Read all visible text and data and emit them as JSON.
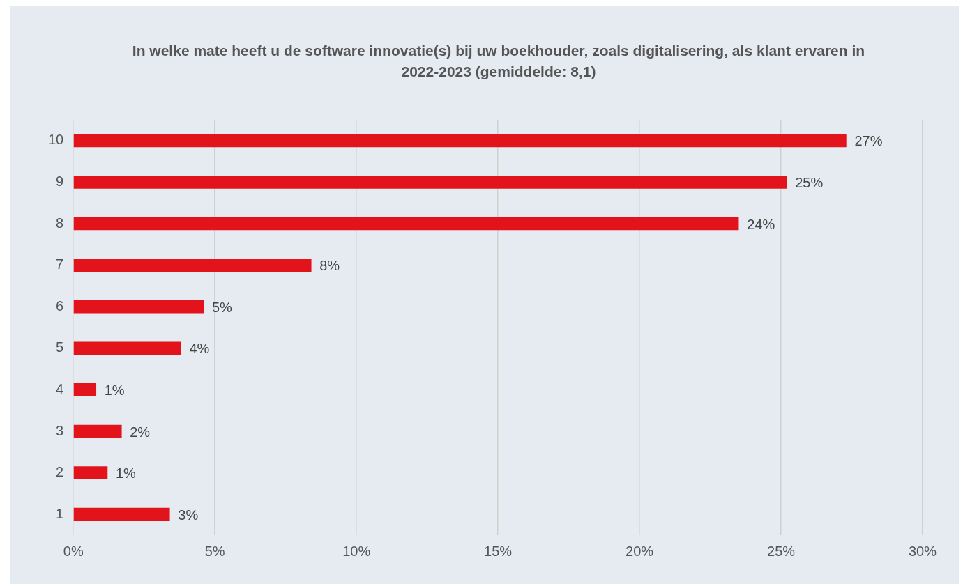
{
  "chart_data": {
    "type": "bar",
    "orientation": "horizontal",
    "title": "In welke mate heeft u de software innovatie(s) bij uw boekhouder, zoals digitalisering, als klant ervaren in 2022-2023   (gemiddelde: 8,1)",
    "categories": [
      "10",
      "9",
      "8",
      "7",
      "6",
      "5",
      "4",
      "3",
      "2",
      "1"
    ],
    "values": [
      27.3,
      25.2,
      23.5,
      8.4,
      4.6,
      3.8,
      0.8,
      1.7,
      1.2,
      3.4
    ],
    "value_labels": [
      "27%",
      "25%",
      "24%",
      "8%",
      "5%",
      "4%",
      "1%",
      "2%",
      "1%",
      "3%"
    ],
    "color": "#e3131c",
    "xlim": [
      0,
      30
    ],
    "xticks": [
      {
        "value": 0,
        "label": "0%"
      },
      {
        "value": 5,
        "label": "5%"
      },
      {
        "value": 10,
        "label": "10%"
      },
      {
        "value": 15,
        "label": "15%"
      },
      {
        "value": 20,
        "label": "20%"
      },
      {
        "value": 25,
        "label": "25%"
      },
      {
        "value": 30,
        "label": "30%"
      }
    ],
    "grid": "x",
    "legend": false
  }
}
